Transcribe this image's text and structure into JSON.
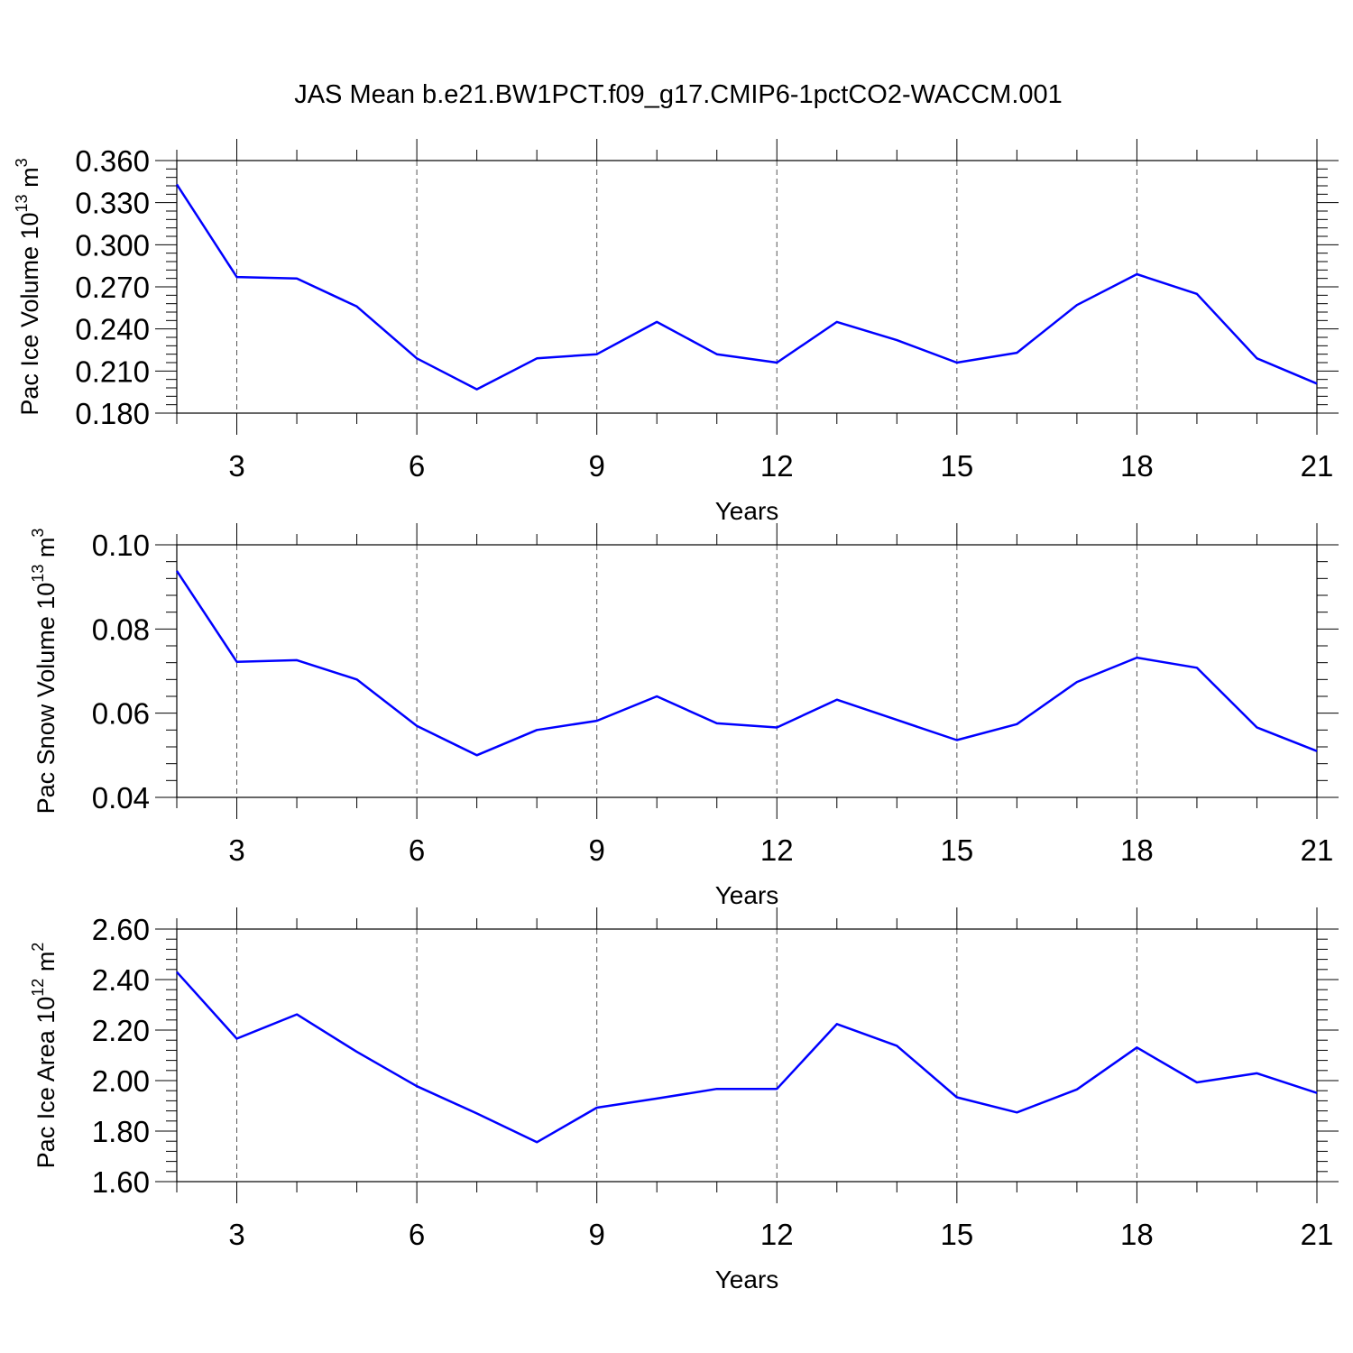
{
  "title": "JAS Mean b.e21.BW1PCT.f09_g17.CMIP6-1pctCO2-WACCM.001",
  "chart_data": [
    {
      "type": "line",
      "ylabel": {
        "text": "Pac Ice Volume 10",
        "sup": "13",
        "unit": " m",
        "unit_sup": "3"
      },
      "xlabel": "Years",
      "xlim": [
        2,
        21
      ],
      "ylim": [
        0.18,
        0.36
      ],
      "xticks": [
        3,
        6,
        9,
        12,
        15,
        18,
        21
      ],
      "yticks": [
        "0.180",
        "0.210",
        "0.240",
        "0.270",
        "0.300",
        "0.330",
        "0.360"
      ],
      "series": [
        {
          "name": "Pac Ice Volume",
          "color": "#0000ff",
          "x": [
            2,
            3,
            4,
            5,
            6,
            7,
            8,
            9,
            10,
            11,
            12,
            13,
            14,
            15,
            16,
            17,
            18,
            19,
            20,
            21
          ],
          "values": [
            0.343,
            0.277,
            0.276,
            0.256,
            0.219,
            0.197,
            0.219,
            0.222,
            0.245,
            0.222,
            0.216,
            0.245,
            0.232,
            0.216,
            0.223,
            0.257,
            0.279,
            0.265,
            0.219,
            0.201
          ]
        }
      ]
    },
    {
      "type": "line",
      "ylabel": {
        "text": "Pac Snow Volume 10",
        "sup": "13",
        "unit": " m",
        "unit_sup": "3"
      },
      "xlabel": "Years",
      "xlim": [
        2,
        21
      ],
      "ylim": [
        0.04,
        0.1
      ],
      "xticks": [
        3,
        6,
        9,
        12,
        15,
        18,
        21
      ],
      "yticks": [
        "0.04",
        "0.06",
        "0.08",
        "0.10"
      ],
      "series": [
        {
          "name": "Pac Snow Volume",
          "color": "#0000ff",
          "x": [
            2,
            3,
            4,
            5,
            6,
            7,
            8,
            9,
            10,
            11,
            12,
            13,
            14,
            15,
            16,
            17,
            18,
            19,
            20,
            21
          ],
          "values": [
            0.0938,
            0.0722,
            0.0726,
            0.068,
            0.057,
            0.05,
            0.056,
            0.0582,
            0.064,
            0.0576,
            0.0566,
            0.0632,
            0.0584,
            0.0536,
            0.0574,
            0.0674,
            0.0732,
            0.0708,
            0.0566,
            0.051
          ]
        }
      ]
    },
    {
      "type": "line",
      "ylabel": {
        "text": "Pac Ice Area 10",
        "sup": "12",
        "unit": " m",
        "unit_sup": "2"
      },
      "xlabel": "Years",
      "xlim": [
        2,
        21
      ],
      "ylim": [
        1.6,
        2.6
      ],
      "xticks": [
        3,
        6,
        9,
        12,
        15,
        18,
        21
      ],
      "yticks": [
        "1.60",
        "1.80",
        "2.00",
        "2.20",
        "2.40",
        "2.60"
      ],
      "series": [
        {
          "name": "Pac Ice Area",
          "color": "#0000ff",
          "x": [
            2,
            3,
            4,
            5,
            6,
            7,
            8,
            9,
            10,
            11,
            12,
            13,
            14,
            15,
            16,
            17,
            18,
            19,
            20,
            21
          ],
          "values": [
            2.43,
            2.166,
            2.262,
            2.114,
            1.978,
            1.87,
            1.756,
            1.893,
            1.929,
            1.967,
            1.967,
            2.224,
            2.138,
            1.934,
            1.874,
            1.965,
            2.131,
            1.993,
            2.029,
            1.951
          ]
        }
      ]
    }
  ]
}
